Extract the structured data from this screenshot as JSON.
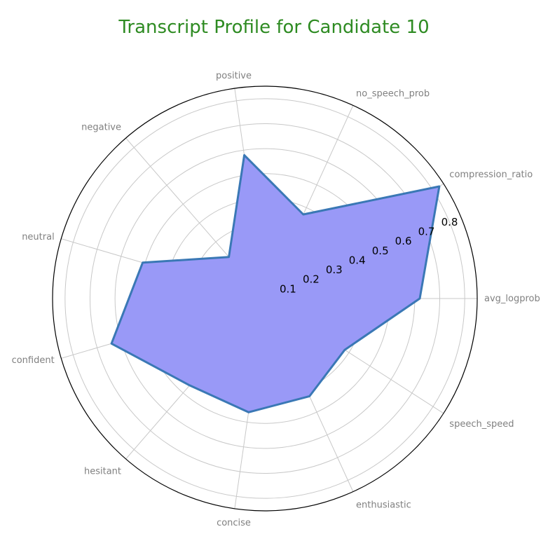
{
  "chart_data": {
    "type": "radar",
    "title": "Transcript Profile for Candidate 10",
    "axes": [
      "avg_logprob",
      "compression_ratio",
      "no_speech_prob",
      "positive",
      "negative",
      "neutral",
      "confident",
      "hesitant",
      "concise",
      "enthusiastic",
      "speech_speed"
    ],
    "values": [
      0.62,
      0.83,
      0.37,
      0.58,
      0.22,
      0.51,
      0.64,
      0.46,
      0.46,
      0.43,
      0.38
    ],
    "rlim": [
      0,
      0.85
    ],
    "r_ticks": [
      0.1,
      0.2,
      0.3,
      0.4,
      0.5,
      0.6,
      0.7,
      0.8
    ],
    "r_tick_labels": [
      "0.1",
      "0.2",
      "0.3",
      "0.4",
      "0.5",
      "0.6",
      "0.7",
      "0.8"
    ],
    "grid": true,
    "colors": {
      "title": "#2e8b22",
      "fill": "#9999f7",
      "line": "#3a78b5",
      "grid": "#c8c8c8",
      "axis_label": "#808080"
    }
  }
}
